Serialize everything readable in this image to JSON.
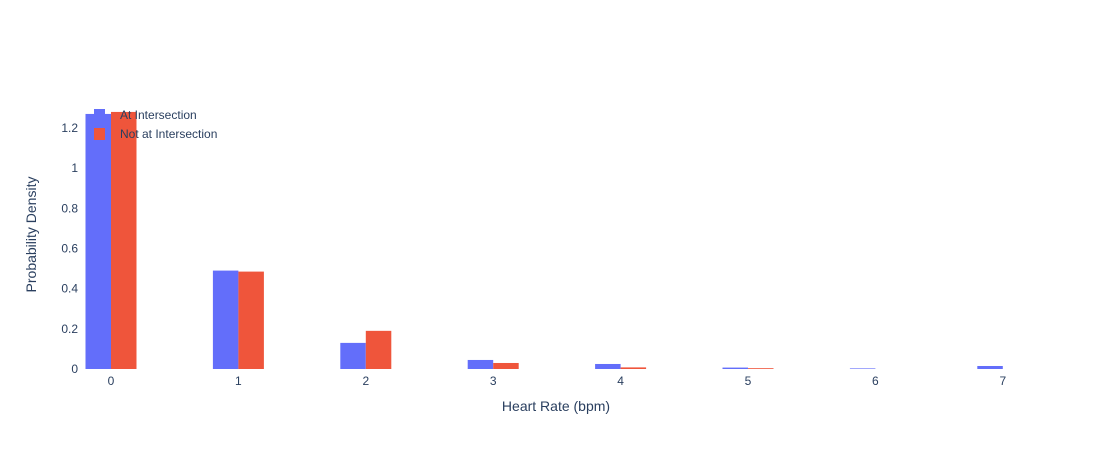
{
  "chart_data": {
    "type": "bar",
    "xlabel": "Heart Rate (bpm)",
    "ylabel": "Probability Density",
    "ylim": [
      0,
      1.3
    ],
    "yticks": [
      0,
      0.2,
      0.4,
      0.6,
      0.8,
      1,
      1.2
    ],
    "ytick_labels": [
      "0",
      "0.2",
      "0.4",
      "0.6",
      "0.8",
      "1",
      "1.2"
    ],
    "xticks": [
      0,
      1,
      2,
      3,
      4,
      5,
      6,
      7
    ],
    "xtick_labels": [
      "0",
      "1",
      "2",
      "3",
      "4",
      "5",
      "6",
      "7"
    ],
    "grid": false,
    "legend_position": "top-left",
    "series": [
      {
        "name": "At Intersection",
        "color": "#636efa",
        "x": [
          0,
          1,
          2,
          3,
          4,
          5,
          6,
          7
        ],
        "values": [
          1.27,
          0.49,
          0.13,
          0.045,
          0.025,
          0.007,
          0.003,
          0.015
        ]
      },
      {
        "name": "Not at Intersection",
        "color": "#ef553b",
        "x": [
          0,
          1,
          2,
          3,
          4,
          5,
          6
        ],
        "values": [
          1.28,
          0.485,
          0.19,
          0.03,
          0.008,
          0.004,
          0.0
        ]
      }
    ]
  }
}
